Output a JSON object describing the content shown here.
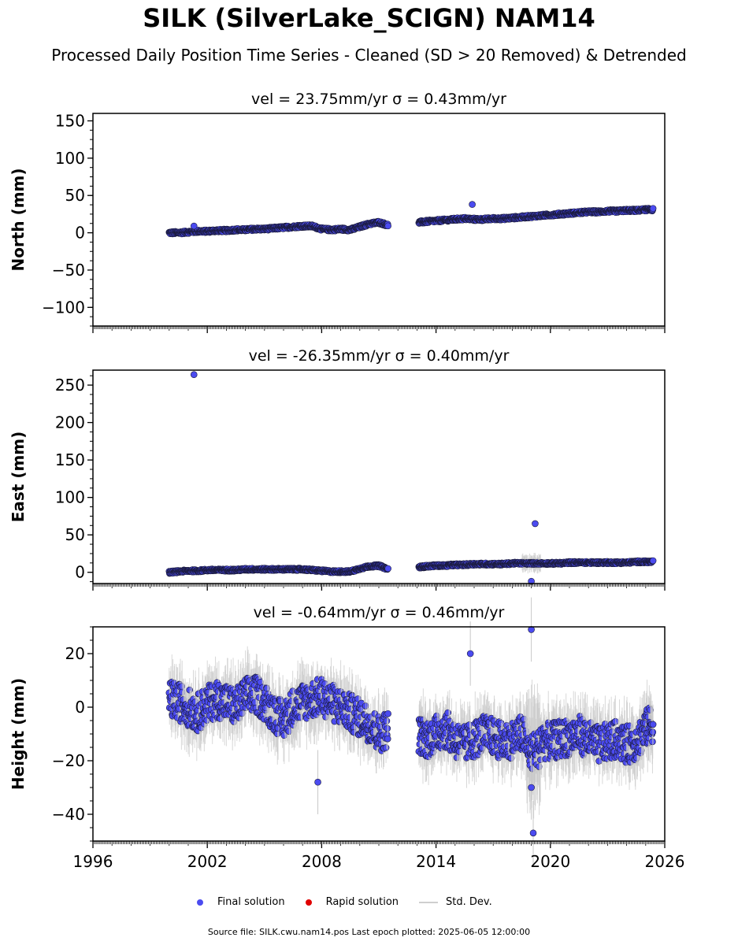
{
  "title": "SILK (SilverLake_SCIGN) NAM14",
  "subtitle": "Processed Daily Position Time Series - Cleaned (SD > 20 Removed) & Detrended",
  "legend": {
    "final": "Final solution",
    "rapid": "Rapid solution",
    "std": "Std. Dev."
  },
  "footer": "Source file: SILK.cwu.nam14.pos  Last epoch plotted: 2025-06-05 12:00:00",
  "colors": {
    "final": "#4b4bf0",
    "rapid": "#e00000",
    "std": "#c8c8c8"
  },
  "chart_data": [
    {
      "type": "scatter",
      "title": "vel = 23.75mm/yr   σ = 0.43mm/yr",
      "ylabel": "North (mm)",
      "xlim": [
        1996,
        2026
      ],
      "ylim": [
        -125,
        160
      ],
      "yticks": [
        "−100",
        "−50",
        "0",
        "50",
        "100",
        "150"
      ],
      "ytick_values": [
        -100,
        -50,
        0,
        50,
        100,
        150
      ],
      "x": [
        2000.0,
        2000.5,
        2001.0,
        2001.5,
        2002.0,
        2002.5,
        2003.0,
        2003.5,
        2004.0,
        2004.5,
        2005.0,
        2005.5,
        2006.0,
        2006.5,
        2007.0,
        2007.5,
        2008.0,
        2008.5,
        2009.0,
        2009.5,
        2010.0,
        2010.5,
        2011.0,
        2011.5,
        2013.1,
        2013.5,
        2014.0,
        2014.5,
        2015.0,
        2015.5,
        2016.0,
        2016.5,
        2017.0,
        2017.5,
        2018.0,
        2018.5,
        2019.0,
        2019.5,
        2020.0,
        2020.5,
        2021.0,
        2021.5,
        2022.0,
        2022.5,
        2023.0,
        2023.5,
        2024.0,
        2024.5,
        2025.0,
        2025.4
      ],
      "y": [
        0,
        0,
        1,
        2,
        2,
        3,
        3,
        4,
        4,
        5,
        5,
        6,
        7,
        8,
        9,
        9,
        5,
        4,
        5,
        4,
        8,
        12,
        14,
        10,
        14,
        15,
        16,
        17,
        18,
        19,
        18,
        18,
        19,
        19,
        20,
        21,
        22,
        23,
        24,
        25,
        26,
        27,
        28,
        28,
        29,
        29,
        30,
        30,
        31,
        31
      ],
      "outliers_x": [
        2015.9,
        2001.3
      ],
      "outliers_y": [
        38,
        9
      ]
    },
    {
      "type": "scatter",
      "title": "vel = -26.35mm/yr   σ = 0.40mm/yr",
      "ylabel": "East (mm)",
      "xlim": [
        1996,
        2026
      ],
      "ylim": [
        -15,
        270
      ],
      "yticks": [
        "0",
        "50",
        "100",
        "150",
        "200",
        "250"
      ],
      "ytick_values": [
        0,
        50,
        100,
        150,
        200,
        250
      ],
      "x": [
        2000.0,
        2000.5,
        2001.0,
        2001.5,
        2002.0,
        2002.5,
        2003.0,
        2003.5,
        2004.0,
        2004.5,
        2005.0,
        2005.5,
        2006.0,
        2006.5,
        2007.0,
        2007.5,
        2008.0,
        2008.5,
        2009.0,
        2009.5,
        2010.0,
        2010.5,
        2011.0,
        2011.5,
        2013.1,
        2013.5,
        2014.0,
        2014.5,
        2015.0,
        2015.5,
        2016.0,
        2016.5,
        2017.0,
        2017.5,
        2018.0,
        2018.5,
        2019.0,
        2019.5,
        2020.0,
        2020.5,
        2021.0,
        2021.5,
        2022.0,
        2022.5,
        2023.0,
        2023.5,
        2024.0,
        2024.5,
        2025.0,
        2025.4
      ],
      "y": [
        0,
        1,
        2,
        2,
        3,
        3,
        3,
        3,
        4,
        4,
        4,
        4,
        4,
        4,
        4,
        3,
        2,
        1,
        1,
        1,
        5,
        8,
        9,
        4,
        7,
        8,
        9,
        9,
        10,
        10,
        11,
        11,
        11,
        11,
        12,
        12,
        12,
        12,
        12,
        12,
        13,
        13,
        13,
        13,
        13,
        13,
        13,
        14,
        14,
        14
      ],
      "outliers_x": [
        2001.3,
        2019.2,
        2019.0
      ],
      "outliers_y": [
        264,
        65,
        -12
      ]
    },
    {
      "type": "scatter",
      "title": "vel = -0.64mm/yr   σ = 0.46mm/yr",
      "ylabel": "Height (mm)",
      "xlim": [
        1996,
        2026
      ],
      "xticks": [
        "1996",
        "2002",
        "2008",
        "2014",
        "2020",
        "2026"
      ],
      "xtick_values": [
        1996,
        2002,
        2008,
        2014,
        2020,
        2026
      ],
      "ylim": [
        -50,
        30
      ],
      "yticks": [
        "−40",
        "−20",
        "0",
        "20"
      ],
      "ytick_values": [
        -40,
        -20,
        0,
        20
      ],
      "x": [
        2000.0,
        2000.5,
        2001.0,
        2001.5,
        2002.0,
        2002.5,
        2003.0,
        2003.5,
        2004.0,
        2004.5,
        2005.0,
        2005.5,
        2006.0,
        2006.5,
        2007.0,
        2007.5,
        2008.0,
        2008.5,
        2009.0,
        2009.5,
        2010.0,
        2010.5,
        2011.0,
        2011.5,
        2013.1,
        2013.5,
        2014.0,
        2014.5,
        2015.0,
        2015.5,
        2016.0,
        2016.5,
        2017.0,
        2017.5,
        2018.0,
        2018.5,
        2019.0,
        2019.5,
        2020.0,
        2020.5,
        2021.0,
        2021.5,
        2022.0,
        2022.5,
        2023.0,
        2023.5,
        2024.0,
        2024.5,
        2025.0,
        2025.4
      ],
      "y": [
        3,
        2,
        0,
        -2,
        1,
        3,
        2,
        0,
        4,
        5,
        2,
        -2,
        -5,
        0,
        2,
        3,
        4,
        2,
        0,
        -2,
        -4,
        -6,
        -10,
        -8,
        -10,
        -12,
        -10,
        -8,
        -12,
        -14,
        -12,
        -10,
        -11,
        -13,
        -12,
        -10,
        -14,
        -12,
        -13,
        -12,
        -11,
        -10,
        -12,
        -14,
        -13,
        -12,
        -14,
        -13,
        -8,
        -6
      ],
      "outliers_x": [
        2019.0,
        2015.8,
        2019.0,
        2007.8,
        2019.1
      ],
      "outliers_y": [
        29,
        20,
        -30,
        -28,
        -47
      ]
    }
  ]
}
